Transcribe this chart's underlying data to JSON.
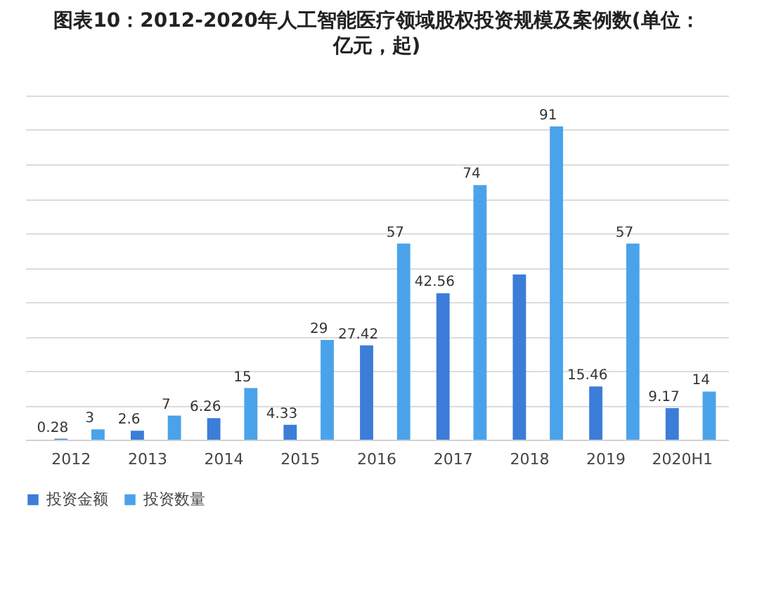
{
  "chart_data": {
    "type": "bar",
    "title": "图表10：2012-2020年人工智能医疗领域股权投资规模及案例数(单位：亿元，起)",
    "categories": [
      "2012",
      "2013",
      "2014",
      "2015",
      "2016",
      "2017",
      "2018",
      "2019",
      "2020H1"
    ],
    "series": [
      {
        "name": "投资金额",
        "color": "#3b7dd8",
        "values": [
          0.28,
          2.6,
          6.26,
          4.33,
          27.42,
          42.56,
          48,
          15.46,
          9.17
        ],
        "value_labels": [
          "0.28",
          "2.6",
          "6.26",
          "4.33",
          "27.42",
          "42.56",
          null,
          "15.46",
          "9.17"
        ]
      },
      {
        "name": "投资数量",
        "color": "#4aa3ea",
        "values": [
          3,
          7,
          15,
          29,
          57,
          74,
          91,
          57,
          14
        ],
        "value_labels": [
          "3",
          "7",
          "15",
          "29",
          "57",
          "74",
          "91",
          "57",
          "14"
        ]
      }
    ],
    "ylim": [
      0,
      100
    ],
    "yticks": [
      {
        "value": 0,
        "label": null
      },
      {
        "value": 10,
        "label": null
      },
      {
        "value": 20,
        "label": null
      },
      {
        "value": 30,
        "label": null
      },
      {
        "value": 40,
        "label": null
      },
      {
        "value": 50,
        "label": null
      },
      {
        "value": 60,
        "label": null
      },
      {
        "value": 70,
        "label": null
      },
      {
        "value": 80,
        "label": null
      },
      {
        "value": 90,
        "label": null
      },
      {
        "value": 100,
        "label": null
      }
    ],
    "tick_labels": "x",
    "grid": "y",
    "legend": "bottom"
  }
}
